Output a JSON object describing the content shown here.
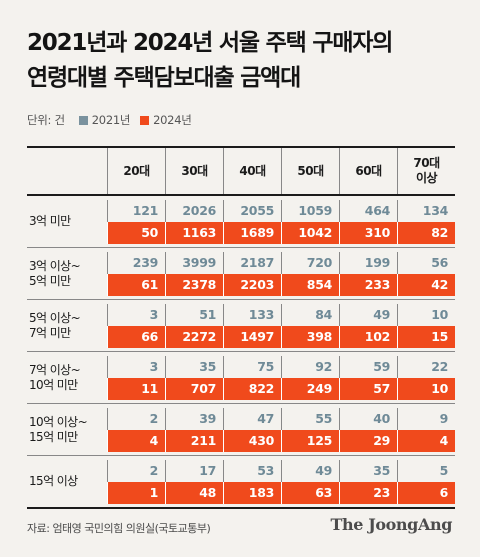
{
  "title": "2021년과 2024년 서울 주택 구매자의\n연령대별 주택담보대출 금액대",
  "unit": "단위: 건",
  "colors": {
    "2021": "#7a929e",
    "2024": "#f04a1c"
  },
  "source": "자료: 엄태영 국민의힘 의원실(국토교통부)",
  "brand": "The JoongAng",
  "chart_data": {
    "type": "table",
    "title": "2021년과 2024년 서울 주택 구매자의 연령대별 주택담보대출 금액대",
    "unit": "단위: 건",
    "columns": [
      "20대",
      "30대",
      "40대",
      "50대",
      "60대",
      "70대\n이상"
    ],
    "legend": [
      "2021년",
      "2024년"
    ],
    "rows": [
      {
        "label": "3억 미만",
        "y2021": [
          121,
          2026,
          2055,
          1059,
          464,
          134
        ],
        "y2024": [
          50,
          1163,
          1689,
          1042,
          310,
          82
        ]
      },
      {
        "label": "3억 이상~\n5억 미만",
        "y2021": [
          239,
          3999,
          2187,
          720,
          199,
          56
        ],
        "y2024": [
          61,
          2378,
          2203,
          854,
          233,
          42
        ]
      },
      {
        "label": "5억 이상~\n7억 미만",
        "y2021": [
          3,
          51,
          133,
          84,
          49,
          10
        ],
        "y2024": [
          66,
          2272,
          1497,
          398,
          102,
          15
        ]
      },
      {
        "label": "7억 이상~\n10억 미만",
        "y2021": [
          3,
          35,
          75,
          92,
          59,
          22
        ],
        "y2024": [
          11,
          707,
          822,
          249,
          57,
          10
        ]
      },
      {
        "label": "10억 이상~\n15억 미만",
        "y2021": [
          2,
          39,
          47,
          55,
          40,
          9
        ],
        "y2024": [
          4,
          211,
          430,
          125,
          29,
          4
        ]
      },
      {
        "label": "15억 이상",
        "y2021": [
          2,
          17,
          53,
          49,
          35,
          5
        ],
        "y2024": [
          1,
          48,
          183,
          63,
          23,
          6
        ]
      }
    ]
  }
}
